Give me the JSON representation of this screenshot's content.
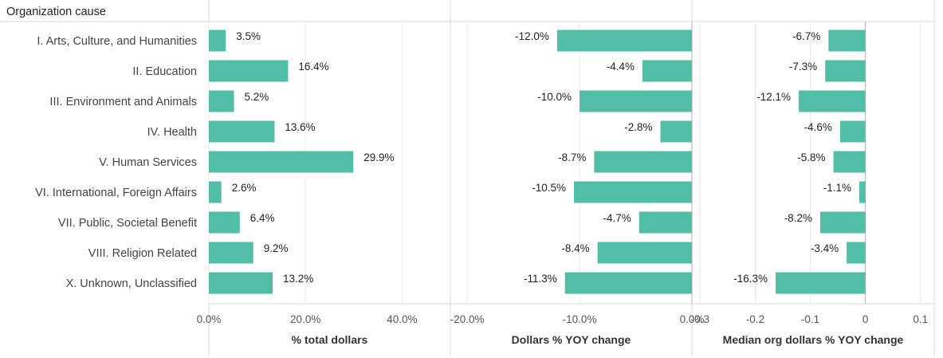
{
  "chart_data": {
    "type": "bar",
    "orientation": "horizontal",
    "header": "Organization cause",
    "categories": [
      "I. Arts, Culture, and Humanities",
      "II. Education",
      "III. Environment and Animals",
      "IV. Health",
      "V. Human Services",
      "VI. International, Foreign Affairs",
      "VII. Public, Societal Benefit",
      "VIII. Religion Related",
      "X. Unknown, Unclassified"
    ],
    "bar_color": "#52bea8",
    "panels": [
      {
        "xlabel": "% total dollars",
        "xlim": [
          0,
          50
        ],
        "ticks": [
          0,
          20,
          40
        ],
        "tick_labels": [
          "0.0%",
          "20.0%",
          "40.0%"
        ],
        "values": [
          3.5,
          16.4,
          5.2,
          13.6,
          29.9,
          2.6,
          6.4,
          9.2,
          13.2
        ],
        "value_labels": [
          "3.5%",
          "16.4%",
          "5.2%",
          "13.6%",
          "29.9%",
          "2.6%",
          "6.4%",
          "9.2%",
          "13.2%"
        ]
      },
      {
        "xlabel": "Dollars % YOY change",
        "xlim": [
          -21.5,
          0
        ],
        "ticks": [
          -20,
          -10,
          0
        ],
        "tick_labels": [
          "-20.0%",
          "-10.0%",
          "0.0%"
        ],
        "values": [
          -12.0,
          -4.4,
          -10.0,
          -2.8,
          -8.7,
          -10.5,
          -4.7,
          -8.4,
          -11.3
        ],
        "value_labels": [
          "-12.0%",
          "-4.4%",
          "-10.0%",
          "-2.8%",
          "-8.7%",
          "-10.5%",
          "-4.7%",
          "-8.4%",
          "-11.3%"
        ]
      },
      {
        "xlabel": "Median org dollars % YOY change",
        "xlim": [
          -31.5,
          12.5
        ],
        "ticks": [
          -30,
          -20,
          -10,
          0,
          10
        ],
        "tick_labels": [
          "-0.3",
          "-0.2",
          "-0.1",
          "0",
          "0.1"
        ],
        "values": [
          -6.7,
          -7.3,
          -12.1,
          -4.6,
          -5.8,
          -1.1,
          -8.2,
          -3.4,
          -16.3
        ],
        "value_labels": [
          "-6.7%",
          "-7.3%",
          "-12.1%",
          "-4.6%",
          "-5.8%",
          "-1.1%",
          "-8.2%",
          "-3.4%",
          "-16.3%"
        ]
      }
    ]
  }
}
